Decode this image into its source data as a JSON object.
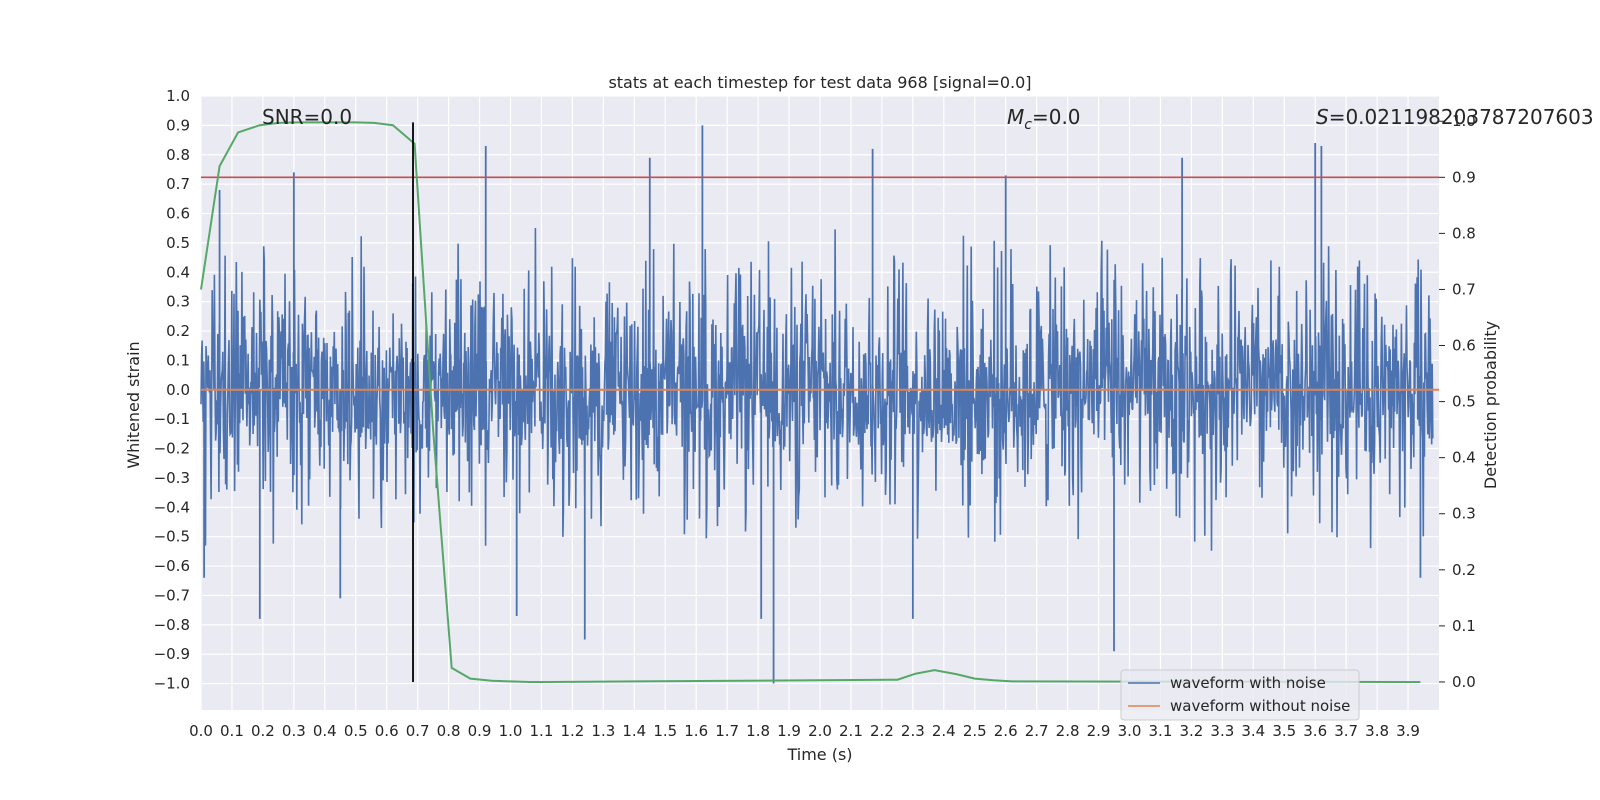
{
  "chart_data": {
    "type": "line",
    "title": "stats at each timestep for test data 968 [signal=0.0]",
    "xlabel": "Time (s)",
    "ylabel": "Whitened strain",
    "y2label": "Detection probability",
    "xlim": [
      0.0,
      4.0
    ],
    "ylim": [
      -1.09,
      1.0
    ],
    "y2lim": [
      -0.05,
      1.045
    ],
    "x_ticks": [
      "0.0",
      "0.1",
      "0.2",
      "0.3",
      "0.4",
      "0.5",
      "0.6",
      "0.7",
      "0.8",
      "0.9",
      "1.0",
      "1.1",
      "1.2",
      "1.3",
      "1.4",
      "1.5",
      "1.6",
      "1.7",
      "1.8",
      "1.9",
      "2.0",
      "2.1",
      "2.2",
      "2.3",
      "2.4",
      "2.5",
      "2.6",
      "2.7",
      "2.8",
      "2.9",
      "3.0",
      "3.1",
      "3.2",
      "3.3",
      "3.4",
      "3.5",
      "3.6",
      "3.7",
      "3.8",
      "3.9"
    ],
    "y_ticks": [
      "1.0",
      "0.9",
      "0.8",
      "0.7",
      "0.6",
      "0.5",
      "0.4",
      "0.3",
      "0.2",
      "0.1",
      "0.0",
      "−0.1",
      "−0.2",
      "−0.3",
      "−0.4",
      "−0.5",
      "−0.6",
      "−0.7",
      "−0.8",
      "−0.9",
      "−1.0"
    ],
    "y2_ticks": [
      "1.0",
      "0.9",
      "0.8",
      "0.7",
      "0.6",
      "0.5",
      "0.4",
      "0.3",
      "0.2",
      "0.1",
      "0.0"
    ],
    "annotations": {
      "snr": "SNR=0.0",
      "mc": "=0.0",
      "mc_symbol": "M",
      "mc_sub": "c",
      "s": "=0.021198203787207603",
      "s_symbol": "S"
    },
    "threshold": 0.9,
    "marker_time": 0.685,
    "series": [
      {
        "name": "waveform with noise",
        "color": "#4c72b0",
        "axis": "left",
        "description": "whitened strain noise, roughly within ±0.6 with spikes to ±1.0",
        "spikes": [
          {
            "x": 0.01,
            "y": -0.64
          },
          {
            "x": 0.06,
            "y": 0.68
          },
          {
            "x": 0.19,
            "y": -0.78
          },
          {
            "x": 0.3,
            "y": 0.74
          },
          {
            "x": 0.45,
            "y": -0.71
          },
          {
            "x": 0.92,
            "y": 0.83
          },
          {
            "x": 1.02,
            "y": -0.77
          },
          {
            "x": 1.24,
            "y": -0.85
          },
          {
            "x": 1.45,
            "y": 0.79
          },
          {
            "x": 1.62,
            "y": 0.9
          },
          {
            "x": 1.81,
            "y": -0.78
          },
          {
            "x": 1.85,
            "y": -1.0
          },
          {
            "x": 2.17,
            "y": 0.82
          },
          {
            "x": 2.3,
            "y": -0.78
          },
          {
            "x": 2.6,
            "y": 0.73
          },
          {
            "x": 2.95,
            "y": -0.89
          },
          {
            "x": 3.17,
            "y": 0.79
          },
          {
            "x": 3.6,
            "y": 0.84
          },
          {
            "x": 3.62,
            "y": 0.83
          },
          {
            "x": 3.94,
            "y": -0.64
          }
        ]
      },
      {
        "name": "waveform without noise",
        "color": "#dd8452",
        "axis": "left",
        "x": [
          0.0,
          4.0
        ],
        "y": [
          0.0,
          0.0
        ]
      },
      {
        "name": "detection probability",
        "color": "#55a868",
        "axis": "right",
        "x": [
          0.0,
          0.06,
          0.12,
          0.19,
          0.25,
          0.31,
          0.37,
          0.44,
          0.5,
          0.56,
          0.62,
          0.69,
          0.75,
          0.81,
          0.87,
          0.94,
          1.0,
          1.06,
          1.12,
          2.25,
          2.31,
          2.37,
          2.44,
          2.5,
          2.56,
          2.62,
          3.94
        ],
        "y": [
          0.7,
          0.92,
          0.98,
          0.993,
          0.997,
          0.998,
          0.998,
          0.998,
          0.998,
          0.997,
          0.993,
          0.96,
          0.45,
          0.025,
          0.006,
          0.002,
          0.001,
          0.0,
          0.0,
          0.004,
          0.015,
          0.021,
          0.014,
          0.006,
          0.003,
          0.001,
          0.0
        ]
      }
    ],
    "legend": {
      "placement": "bottom-right",
      "entries": [
        "waveform with noise",
        "waveform without noise"
      ]
    },
    "colors": {
      "plot_bg": "#eaeaf2",
      "grid": "#ffffff",
      "threshold": "#c44e52",
      "marker": "#000000"
    }
  }
}
